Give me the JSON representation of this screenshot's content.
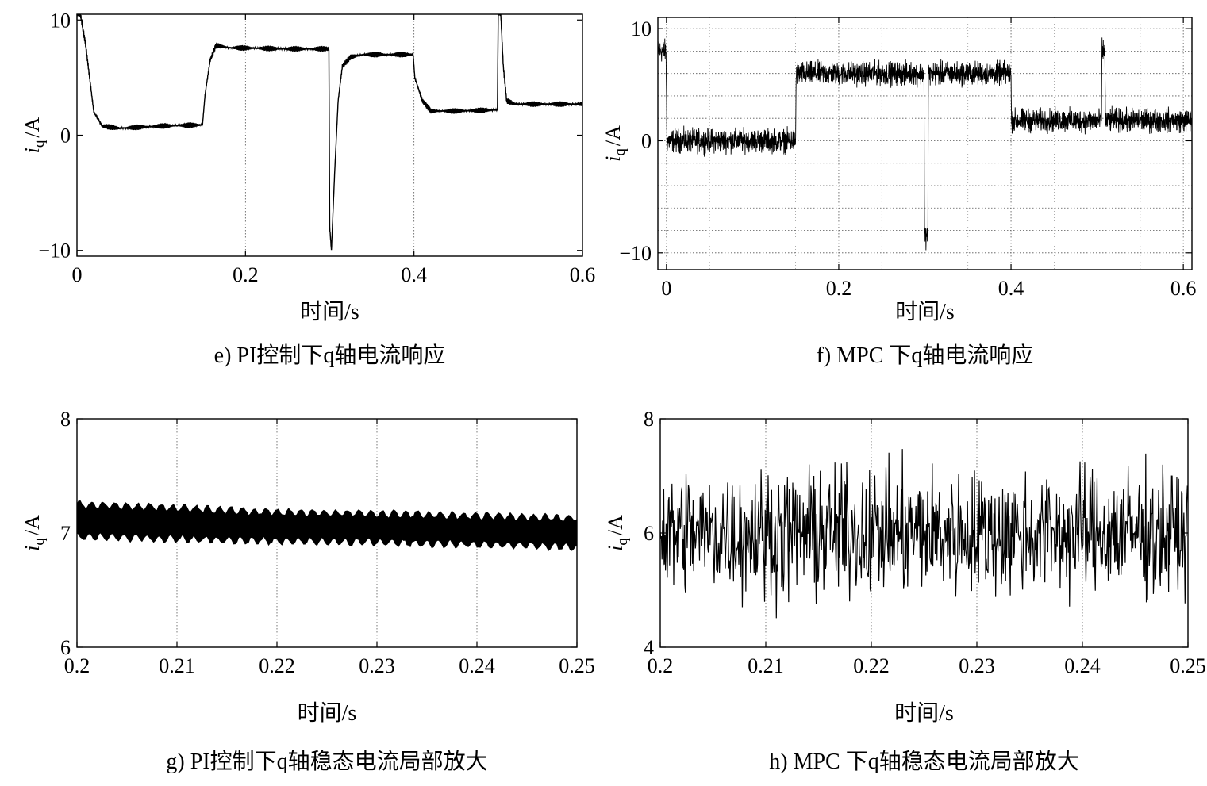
{
  "chart_data": [
    {
      "id": "e",
      "type": "line",
      "caption": "e) PI控制下q轴电流响应",
      "xlabel": "时间/s",
      "ylabel_var": "i",
      "ylabel_sub": "q",
      "ylabel_unit": "/A",
      "xlim": [
        0,
        0.6
      ],
      "ylim": [
        -10.5,
        10.5
      ],
      "xticks": [
        0,
        0.2,
        0.4,
        0.6
      ],
      "xtick_labels": [
        "0",
        "0.2",
        "0.4",
        "0.6"
      ],
      "yticks": [
        -10,
        0,
        10
      ],
      "ytick_labels": [
        "−10",
        "0",
        "10"
      ],
      "grid": "vertical-dotted",
      "series": [
        {
          "style": "waveform",
          "x": [
            0,
            0.004,
            0.01,
            0.02,
            0.03,
            0.05,
            0.1,
            0.149,
            0.152,
            0.158,
            0.165,
            0.18,
            0.25,
            0.299,
            0.3,
            0.302,
            0.306,
            0.31,
            0.315,
            0.325,
            0.34,
            0.399,
            0.401,
            0.41,
            0.42,
            0.45,
            0.499,
            0.5,
            0.503,
            0.506,
            0.51,
            0.52,
            0.6
          ],
          "y": [
            10.5,
            10.5,
            8,
            2,
            0.8,
            0.6,
            0.8,
            0.9,
            3.5,
            6.5,
            7.8,
            7.6,
            7.5,
            7.5,
            -8,
            -10,
            -3,
            3,
            6,
            6.8,
            7,
            7,
            5,
            3,
            2.1,
            2.1,
            2.2,
            10.5,
            10.5,
            6,
            3,
            2.7,
            2.7
          ],
          "ripple": 0.25
        }
      ]
    },
    {
      "id": "f",
      "type": "line",
      "caption": "f) MPC 下q轴电流响应",
      "xlabel": "时间/s",
      "ylabel_var": "i",
      "ylabel_sub": "q",
      "ylabel_unit": "/A",
      "xlim": [
        -0.01,
        0.61
      ],
      "ylim": [
        -11.5,
        11
      ],
      "xticks": [
        0,
        0.2,
        0.4,
        0.6
      ],
      "xtick_labels": [
        "0",
        "0.2",
        "0.4",
        "0.6"
      ],
      "yticks": [
        -10,
        0,
        10
      ],
      "ytick_labels": [
        "−10",
        "0",
        "10"
      ],
      "grid": "both-dotted",
      "series": [
        {
          "style": "noise",
          "x": [
            -0.01,
            -0.0005,
            0.0005,
            0.15,
            0.1505,
            0.299,
            0.2995,
            0.3035,
            0.304,
            0.4,
            0.4005,
            0.505,
            0.5055,
            0.509,
            0.5095,
            0.61
          ],
          "y": [
            8,
            8,
            0,
            0,
            6,
            6,
            -8.5,
            -8.5,
            6,
            6,
            1.8,
            1.8,
            8,
            8,
            1.8,
            1.8
          ],
          "noise": 1.5
        }
      ]
    },
    {
      "id": "g",
      "type": "line",
      "caption": "g) PI控制下q轴稳态电流局部放大",
      "xlabel": "时间/s",
      "ylabel_var": "i",
      "ylabel_sub": "q",
      "ylabel_unit": "/A",
      "xlim": [
        0.2,
        0.25
      ],
      "ylim": [
        6,
        8
      ],
      "xticks": [
        0.2,
        0.21,
        0.22,
        0.23,
        0.24,
        0.25
      ],
      "xtick_labels": [
        "0.2",
        "0.21",
        "0.22",
        "0.23",
        "0.24",
        "0.25"
      ],
      "yticks": [
        6,
        7,
        8
      ],
      "ytick_labels": [
        "6",
        "7",
        "8"
      ],
      "grid": "vertical-dotted",
      "series": [
        {
          "style": "band",
          "x": [
            0.2,
            0.21,
            0.22,
            0.23,
            0.24,
            0.25
          ],
          "upper": [
            7.25,
            7.22,
            7.18,
            7.17,
            7.15,
            7.13
          ],
          "lower": [
            6.97,
            6.95,
            6.93,
            6.92,
            6.9,
            6.88
          ]
        }
      ]
    },
    {
      "id": "h",
      "type": "line",
      "caption": "h) MPC 下q轴稳态电流局部放大",
      "xlabel": "时间/s",
      "ylabel_var": "i",
      "ylabel_sub": "q",
      "ylabel_unit": "/A",
      "xlim": [
        0.2,
        0.25
      ],
      "ylim": [
        4,
        8
      ],
      "xticks": [
        0.2,
        0.21,
        0.22,
        0.23,
        0.24,
        0.25
      ],
      "xtick_labels": [
        "0.2",
        "0.21",
        "0.22",
        "0.23",
        "0.24",
        "0.25"
      ],
      "yticks": [
        4,
        6,
        8
      ],
      "ytick_labels": [
        "4",
        "6",
        "8"
      ],
      "grid": "vertical-dotted",
      "series": [
        {
          "style": "noise",
          "x": [
            0.2,
            0.25
          ],
          "y": [
            6,
            6
          ],
          "noise": 1.6
        }
      ]
    }
  ]
}
